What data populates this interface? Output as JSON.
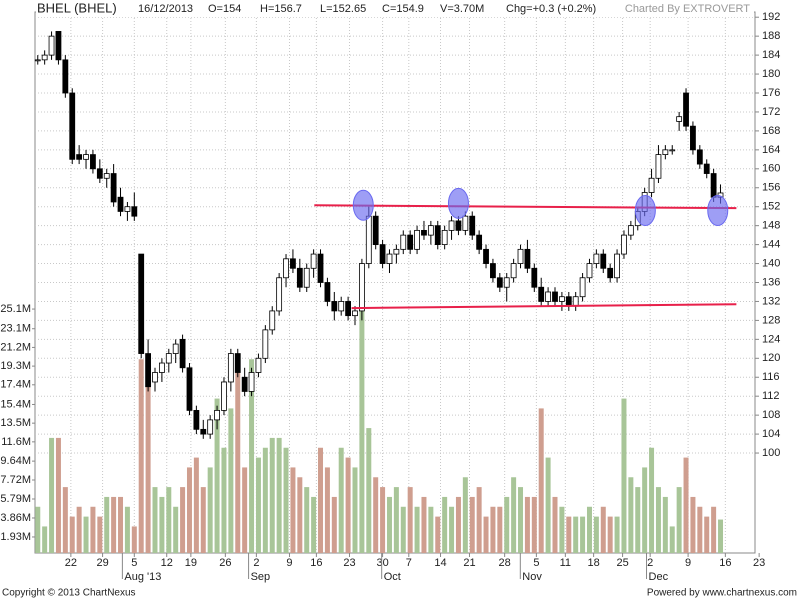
{
  "chart_data": {
    "type": "candlestick",
    "header": {
      "title": "BHEL (BHEL)",
      "date": "16/12/2013",
      "quote": [
        "O=154",
        "H=156.7",
        "L=152.65",
        "C=154.9",
        "V=3.70M",
        "Chg=+0.3 (+0.2%)"
      ],
      "credit": "Charted By EXTROVERT"
    },
    "footer": {
      "copyright": "Copyright © 2013 ChartNexus",
      "powered": "Powered by www.chartnexus.com"
    },
    "open": [
      183,
      183,
      184,
      189,
      183,
      176,
      163,
      162,
      163,
      160,
      158,
      159,
      154,
      151,
      152,
      142,
      121,
      115,
      117,
      119,
      121,
      124,
      118,
      109,
      105,
      104,
      107,
      109,
      115,
      121,
      116,
      113,
      117,
      120,
      126,
      130,
      137,
      141,
      139,
      135,
      139,
      142,
      136,
      132,
      130,
      132,
      129,
      130,
      140,
      150,
      144,
      140,
      142,
      143,
      146,
      143,
      147,
      146,
      148,
      144,
      147,
      149,
      147,
      150,
      146,
      143,
      140,
      137,
      135,
      137,
      140,
      143,
      139,
      135,
      132,
      134,
      132,
      133,
      131,
      133,
      137,
      140,
      142,
      139,
      137,
      142,
      146,
      148,
      151,
      155,
      158,
      163,
      164,
      170,
      176,
      169,
      164,
      161,
      159,
      154
    ],
    "high": [
      184,
      185,
      189,
      189,
      184,
      177,
      165,
      164,
      164,
      162,
      160,
      161,
      156,
      153,
      155,
      142,
      124,
      118,
      120,
      122,
      124,
      125,
      119,
      110,
      107,
      108,
      110,
      116,
      122,
      122,
      118,
      118,
      121,
      127,
      131,
      138,
      142,
      143,
      141,
      140,
      143,
      143,
      137,
      134,
      133,
      133,
      131,
      141,
      152,
      151,
      145,
      143,
      144,
      147,
      147,
      148,
      149,
      149,
      149,
      148,
      150,
      150,
      151,
      151,
      147,
      144,
      141,
      138,
      138,
      141,
      144,
      145,
      140,
      137,
      135,
      135,
      134,
      134,
      134,
      138,
      141,
      143,
      143,
      140,
      143,
      147,
      149,
      152,
      156,
      160,
      165,
      165,
      165,
      172,
      177,
      170,
      165,
      162,
      160,
      156.7
    ],
    "low": [
      182,
      182,
      183,
      182,
      175,
      161,
      161,
      160,
      159,
      157,
      156,
      152,
      150,
      149,
      149,
      120,
      113,
      113,
      115,
      117,
      119,
      117,
      108,
      104,
      103,
      103,
      105,
      108,
      113,
      116,
      112,
      112,
      116,
      119,
      125,
      129,
      135,
      138,
      134,
      134,
      137,
      135,
      131,
      128,
      129,
      128,
      127,
      128,
      139,
      143,
      139,
      138,
      140,
      142,
      142,
      142,
      145,
      144,
      143,
      143,
      145,
      146,
      146,
      145,
      142,
      139,
      136,
      134,
      132,
      136,
      139,
      138,
      134,
      131,
      131,
      131,
      130,
      130,
      130,
      132,
      136,
      139,
      138,
      136,
      136,
      141,
      145,
      147,
      150,
      154,
      157,
      162,
      163,
      168,
      168,
      163,
      160,
      158,
      153,
      152.65
    ],
    "close": [
      183,
      184,
      188,
      183,
      176,
      162,
      162,
      163,
      160,
      158,
      159,
      153,
      151,
      152,
      150,
      121,
      114,
      117,
      119,
      121,
      123,
      118,
      109,
      105,
      104,
      107,
      109,
      115,
      121,
      117,
      113,
      117,
      120,
      126,
      130,
      137,
      141,
      139,
      135,
      139,
      142,
      136,
      132,
      130,
      132,
      129,
      130,
      140,
      150,
      144,
      140,
      142,
      143,
      146,
      143,
      147,
      146,
      148,
      144,
      147,
      149,
      147,
      150,
      146,
      143,
      140,
      137,
      135,
      137,
      140,
      143,
      139,
      135,
      132,
      134,
      132,
      133,
      131,
      133,
      137,
      140,
      142,
      139,
      137,
      142,
      146,
      148,
      151,
      155,
      158,
      163,
      164,
      164,
      171,
      169,
      164,
      161,
      159,
      154,
      154.9
    ],
    "volume": [
      5,
      3,
      12,
      12,
      7,
      4,
      5,
      4,
      5,
      4,
      6,
      6,
      6,
      5,
      3,
      20,
      19,
      7,
      6,
      7,
      5,
      7,
      9,
      10,
      7,
      9,
      16,
      11,
      15,
      19,
      9,
      20,
      10,
      11,
      12,
      12,
      11,
      9,
      8,
      7,
      6,
      11,
      9,
      6,
      11,
      10,
      9,
      25,
      13,
      8,
      7,
      6,
      7,
      5,
      7,
      5,
      6,
      5,
      4,
      6,
      5,
      6,
      8,
      6,
      7,
      4,
      5,
      5,
      6,
      8,
      7,
      6,
      6,
      15,
      10,
      6,
      5,
      4,
      4,
      4,
      5,
      4,
      5,
      4,
      4,
      16,
      8,
      7,
      9,
      11,
      7,
      6,
      3,
      7,
      10,
      6,
      5,
      4,
      5,
      3.7
    ],
    "up_color": "#ffffff",
    "down_color": "#000000",
    "candle_edge": "#000000",
    "volume_up_color": "#a8c598",
    "volume_down_color": "#cf9e8f",
    "xlim": [
      -0.4,
      104
    ],
    "xticks": [
      {
        "value": 4.8,
        "label": "22"
      },
      {
        "value": 9.4,
        "label": "29"
      },
      {
        "value": 14,
        "label": "5"
      },
      {
        "value": 18.7,
        "label": "12"
      },
      {
        "value": 22.2,
        "label": "19"
      },
      {
        "value": 27.2,
        "label": "26"
      },
      {
        "value": 31.7,
        "label": "2"
      },
      {
        "value": 36.5,
        "label": "9"
      },
      {
        "value": 40.4,
        "label": "16"
      },
      {
        "value": 45.2,
        "label": "23"
      },
      {
        "value": 50,
        "label": "30"
      },
      {
        "value": 53.8,
        "label": "7"
      },
      {
        "value": 58.4,
        "label": "14"
      },
      {
        "value": 62.6,
        "label": "21"
      },
      {
        "value": 67.7,
        "label": "28"
      },
      {
        "value": 72.3,
        "label": "5"
      },
      {
        "value": 76.5,
        "label": "11"
      },
      {
        "value": 80.6,
        "label": "18"
      },
      {
        "value": 84.8,
        "label": "25"
      },
      {
        "value": 88.8,
        "label": "2"
      },
      {
        "value": 94.3,
        "label": "9"
      },
      {
        "value": 99.7,
        "label": "16"
      },
      {
        "value": 104.6,
        "label": "23"
      }
    ],
    "month_labels": [
      {
        "value": 14.3,
        "label": "Aug '13"
      },
      {
        "value": 32.6,
        "label": "Sep"
      },
      {
        "value": 51.9,
        "label": "Oct"
      },
      {
        "value": 72,
        "label": "Nov"
      },
      {
        "value": 90.3,
        "label": "Dec"
      }
    ],
    "ylim": [
      78.9,
      193.1
    ],
    "yticks": [
      100,
      104,
      108,
      112,
      116,
      120,
      124,
      128,
      132,
      136,
      140,
      144,
      148,
      152,
      156,
      160,
      164,
      168,
      172,
      176,
      180,
      184,
      188,
      192
    ],
    "y2lim": [
      0.3,
      55.3
    ],
    "y2ticks": [
      {
        "value": 1.93,
        "label": "1.93M"
      },
      {
        "value": 3.86,
        "label": "3.86M"
      },
      {
        "value": 5.79,
        "label": "5.79M"
      },
      {
        "value": 7.72,
        "label": "7.72M"
      },
      {
        "value": 9.64,
        "label": "9.64M"
      },
      {
        "value": 11.6,
        "label": "11.6M"
      },
      {
        "value": 13.5,
        "label": "13.5M"
      },
      {
        "value": 15.4,
        "label": "15.4M"
      },
      {
        "value": 17.4,
        "label": "17.4M"
      },
      {
        "value": 19.3,
        "label": "19.3M"
      },
      {
        "value": 21.2,
        "label": "21.2M"
      },
      {
        "value": 23.1,
        "label": "23.1M"
      },
      {
        "value": 25.1,
        "label": "25.1M"
      }
    ],
    "grid": true,
    "trendlines": [
      {
        "x": [
          40.1,
          101.3
        ],
        "y": [
          152.3,
          151.7
        ]
      },
      {
        "x": [
          45.5,
          101.3
        ],
        "y": [
          130.6,
          131.4
        ]
      }
    ],
    "trendline_color": "#e8204a",
    "highlights": [
      {
        "x": 47.2,
        "y": 152.3
      },
      {
        "x": 61,
        "y": 152.7
      },
      {
        "x": 88.1,
        "y": 151.2
      },
      {
        "x": 98.6,
        "y": 151.2
      }
    ],
    "highlight_color": "#6a6af0"
  }
}
